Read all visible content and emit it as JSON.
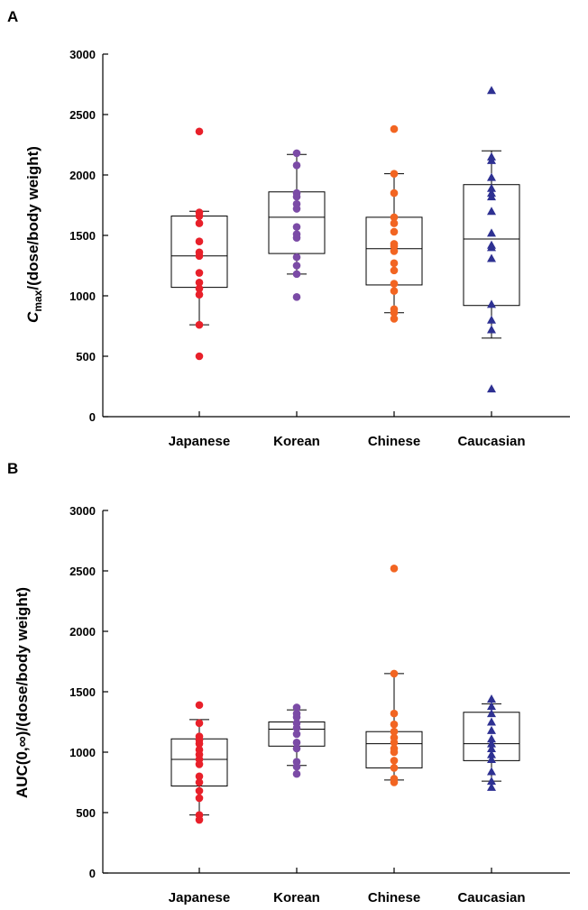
{
  "chart_data": [
    {
      "panel": "A",
      "type": "box",
      "ylabel_main": "C",
      "ylabel_sub": "max",
      "ylabel_rest": "/(dose/body weight)",
      "ylim": [
        0,
        3000
      ],
      "yticks": [
        0,
        500,
        1000,
        1500,
        2000,
        2500,
        3000
      ],
      "categories": [
        "Japanese",
        "Korean",
        "Chinese",
        "Caucasian"
      ],
      "colors": [
        "#e8202a",
        "#7b4ba6",
        "#f26522",
        "#2e3192"
      ],
      "markers": [
        "circle",
        "circle",
        "circle",
        "triangle"
      ],
      "boxes": [
        {
          "whisker_low": 760,
          "q1": 1070,
          "median": 1330,
          "q3": 1660,
          "whisker_high": 1700
        },
        {
          "whisker_low": 1180,
          "q1": 1350,
          "median": 1650,
          "q3": 1860,
          "whisker_high": 2170
        },
        {
          "whisker_low": 860,
          "q1": 1090,
          "median": 1390,
          "q3": 1650,
          "whisker_high": 2010
        },
        {
          "whisker_low": 650,
          "q1": 920,
          "median": 1470,
          "q3": 1920,
          "whisker_high": 2200
        }
      ],
      "points": [
        [
          500,
          760,
          1010,
          1060,
          1110,
          1190,
          1330,
          1360,
          1450,
          1600,
          1660,
          1690,
          2360
        ],
        [
          990,
          1180,
          1250,
          1320,
          1480,
          1510,
          1570,
          1720,
          1760,
          1820,
          1850,
          2080,
          2180
        ],
        [
          810,
          860,
          890,
          1040,
          1100,
          1210,
          1270,
          1370,
          1410,
          1430,
          1530,
          1600,
          1650,
          1850,
          2010,
          2380
        ],
        [
          230,
          720,
          800,
          930,
          1310,
          1400,
          1420,
          1520,
          1700,
          1820,
          1850,
          1890,
          1980,
          2120,
          2150,
          2700
        ]
      ]
    },
    {
      "panel": "B",
      "type": "box",
      "ylabel_main": "AUC(0,∞)/(dose/body weight)",
      "ylim": [
        0,
        3000
      ],
      "yticks": [
        0,
        500,
        1000,
        1500,
        2000,
        2500,
        3000
      ],
      "categories": [
        "Japanese",
        "Korean",
        "Chinese",
        "Caucasian"
      ],
      "colors": [
        "#e8202a",
        "#7b4ba6",
        "#f26522",
        "#2e3192"
      ],
      "markers": [
        "circle",
        "circle",
        "circle",
        "triangle"
      ],
      "boxes": [
        {
          "whisker_low": 480,
          "q1": 720,
          "median": 940,
          "q3": 1110,
          "whisker_high": 1270
        },
        {
          "whisker_low": 890,
          "q1": 1050,
          "median": 1190,
          "q3": 1250,
          "whisker_high": 1350
        },
        {
          "whisker_low": 770,
          "q1": 870,
          "median": 1070,
          "q3": 1170,
          "whisker_high": 1650
        },
        {
          "whisker_low": 760,
          "q1": 930,
          "median": 1070,
          "q3": 1330,
          "whisker_high": 1400
        }
      ],
      "points": [
        [
          440,
          480,
          620,
          680,
          750,
          800,
          900,
          940,
          980,
          1020,
          1070,
          1100,
          1130,
          1240,
          1390
        ],
        [
          820,
          880,
          920,
          1030,
          1080,
          1150,
          1200,
          1240,
          1290,
          1320,
          1370
        ],
        [
          750,
          780,
          870,
          930,
          1000,
          1030,
          1080,
          1120,
          1170,
          1230,
          1320,
          1650,
          2520
        ],
        [
          710,
          760,
          840,
          940,
          980,
          1030,
          1070,
          1110,
          1180,
          1250,
          1320,
          1380,
          1440
        ]
      ]
    }
  ]
}
